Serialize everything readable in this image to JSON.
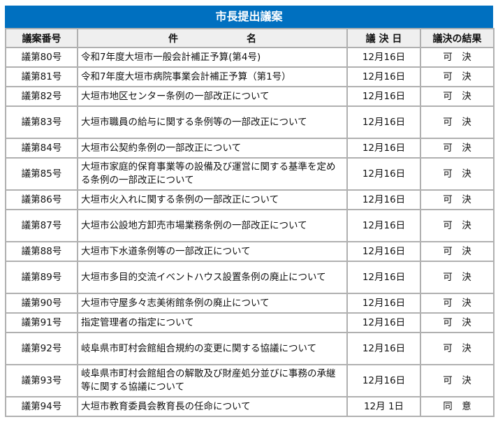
{
  "title": "市長提出議案",
  "headers": [
    "議案番号",
    "件　　　　　　　名",
    "議 決 日",
    "議決の結果"
  ],
  "rows": [
    {
      "num": "議第80号",
      "name": "令和7年度大垣市一般会計補正予算(第4号)",
      "date": "12月16日",
      "result": "可　決"
    },
    {
      "num": "議第81号",
      "name": "令和7年度大垣市病院事業会計補正予算（第1号）",
      "date": "12月16日",
      "result": "可　決"
    },
    {
      "num": "議第82号",
      "name": "大垣市地区センター条例の一部改正について",
      "date": "12月16日",
      "result": "可　決"
    },
    {
      "num": "議第83号",
      "name": "大垣市職員の給与に関する条例等の一部改正について",
      "date": "12月16日",
      "result": "可　決"
    },
    {
      "num": "議第84号",
      "name": "大垣市公契約条例の一部改正について",
      "date": "12月16日",
      "result": "可　決"
    },
    {
      "num": "議第85号",
      "name": "大垣市家庭的保育事業等の設備及び運営に関する基準を定める条例の一部改正について",
      "date": "12月16日",
      "result": "可　決"
    },
    {
      "num": "議第86号",
      "name": "大垣市火入れに関する条例の一部改正について",
      "date": "12月16日",
      "result": "可　決"
    },
    {
      "num": "議第87号",
      "name": "大垣市公設地方卸売市場業務条例の一部改正について",
      "date": "12月16日",
      "result": "可　決"
    },
    {
      "num": "議第88号",
      "name": "大垣市下水道条例等の一部改正について",
      "date": "12月16日",
      "result": "可　決"
    },
    {
      "num": "議第89号",
      "name": "大垣市多目的交流イベントハウス設置条例の廃止について",
      "date": "12月16日",
      "result": "可　決"
    },
    {
      "num": "議第90号",
      "name": "大垣市守屋多々志美術館条例の廃止について",
      "date": "12月16日",
      "result": "可　決"
    },
    {
      "num": "議第91号",
      "name": "指定管理者の指定について",
      "date": "12月16日",
      "result": "可　決"
    },
    {
      "num": "議第92号",
      "name": "岐阜県市町村会館組合規約の変更に関する協議について",
      "date": "12月16日",
      "result": "可　決"
    },
    {
      "num": "議第93号",
      "name": "岐阜県市町村会館組合の解散及び財産処分並びに事務の承継等に関する協議について",
      "date": "12月16日",
      "result": "可　決"
    },
    {
      "num": "議第94号",
      "name": "大垣市教育委員会教育長の任命について",
      "date": "12月 1日",
      "result": "同　意"
    }
  ]
}
